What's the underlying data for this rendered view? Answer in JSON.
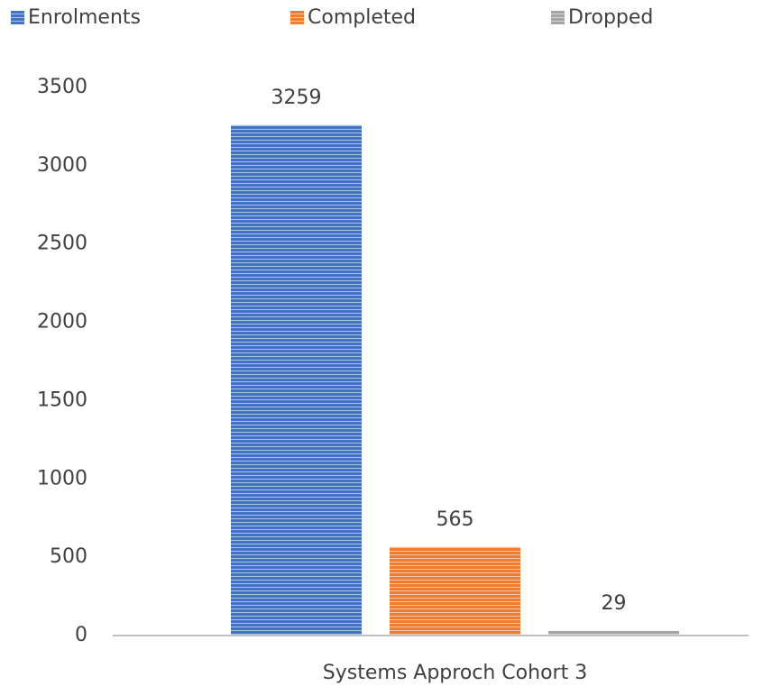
{
  "chart_data": {
    "type": "bar",
    "categories": [
      "Systems Approch Cohort 3"
    ],
    "series": [
      {
        "name": "Enrolments",
        "color": "#4472c4",
        "values": [
          3259
        ]
      },
      {
        "name": "Completed",
        "color": "#ed7d31",
        "values": [
          565
        ]
      },
      {
        "name": "Dropped",
        "color": "#a5a5a5",
        "values": [
          29
        ]
      }
    ],
    "ylim": [
      0,
      3500
    ],
    "yticks": [
      0,
      500,
      1000,
      1500,
      2000,
      2500,
      3000,
      3500
    ],
    "grid": false,
    "legend": "top"
  }
}
